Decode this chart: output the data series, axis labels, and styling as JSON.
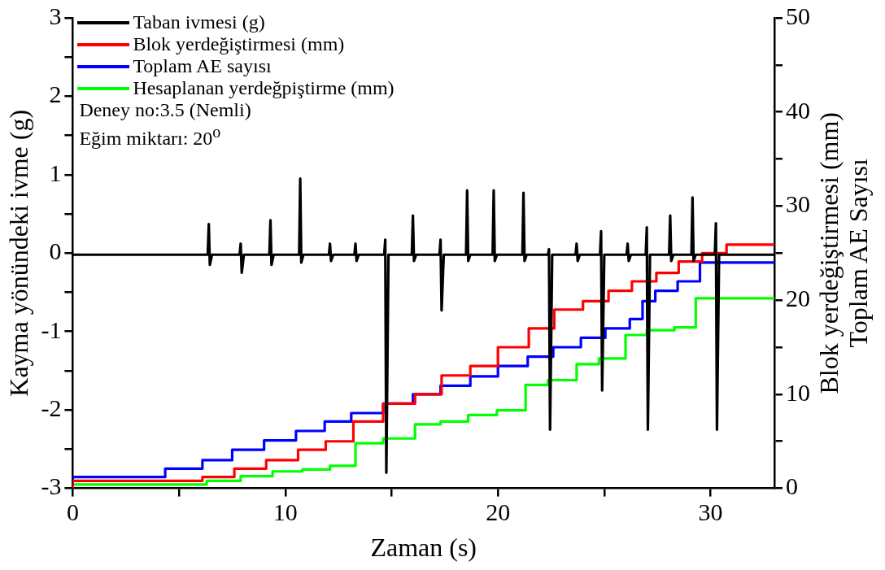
{
  "chart_data": {
    "type": "line",
    "xlabel": "Zaman (s)",
    "ylabel": "Kayma yönündeki ivme (g)",
    "y2label": "Blok yerdeğiştirmesi (mm)\nToplam AE Sayısı",
    "xlim": [
      0,
      33
    ],
    "xticks": [
      0,
      {
        "value": 5,
        "label": null
      },
      10,
      {
        "value": 15,
        "label": null
      },
      20,
      {
        "value": 25,
        "label": null
      },
      30
    ],
    "ylim": [
      -3,
      3
    ],
    "yticks": [
      -3,
      {
        "value": -2.5,
        "label": null
      },
      -2,
      {
        "value": -1.5,
        "label": null
      },
      -1,
      {
        "value": -0.5,
        "label": null
      },
      0,
      {
        "value": 0.5,
        "label": null
      },
      1,
      {
        "value": 1.5,
        "label": null
      },
      2,
      {
        "value": 2.5,
        "label": null
      },
      3
    ],
    "y2lim": [
      0,
      50
    ],
    "y2ticks": [
      0,
      {
        "value": 5,
        "label": null
      },
      10,
      {
        "value": 15,
        "label": null
      },
      20,
      {
        "value": 25,
        "label": null
      },
      30,
      {
        "value": 35,
        "label": null
      },
      40,
      {
        "value": 45,
        "label": null
      },
      50
    ],
    "grid": false,
    "legend": "top left",
    "annotations": [
      "Deney no:3.5 (Nemli)",
      "Eğim miktarı: 20$^{o}$"
    ],
    "series": [
      {
        "name": "Taban ivmesi (g)",
        "type": "line",
        "color": "#000000",
        "x": [
          0,
          6.35,
          6.4,
          6.45,
          6.55,
          7.85,
          7.9,
          7.95,
          8.05,
          9.25,
          9.3,
          9.35,
          9.45,
          10.65,
          10.7,
          10.75,
          10.85,
          12.05,
          12.1,
          12.15,
          12.25,
          13.25,
          13.3,
          13.35,
          13.45,
          14.65,
          14.7,
          14.75,
          14.85,
          15.95,
          16.0,
          16.05,
          16.15,
          17.25,
          17.3,
          17.35,
          17.45,
          18.5,
          18.55,
          18.6,
          18.7,
          19.75,
          19.8,
          19.85,
          19.95,
          21.15,
          21.2,
          21.25,
          21.35,
          22.35,
          22.4,
          22.45,
          22.55,
          23.65,
          23.7,
          23.75,
          23.85,
          24.8,
          24.85,
          24.9,
          25.0,
          26.05,
          26.1,
          26.15,
          26.25,
          26.95,
          27.0,
          27.05,
          27.15,
          28.05,
          28.1,
          28.15,
          28.25,
          29.1,
          29.15,
          29.2,
          29.3,
          30.2,
          30.25,
          30.3,
          30.4,
          33
        ],
        "values": [
          -0.02,
          -0.02,
          0.37,
          -0.15,
          -0.02,
          -0.02,
          0.12,
          -0.25,
          -0.02,
          -0.02,
          0.42,
          -0.15,
          -0.02,
          -0.02,
          0.95,
          -0.12,
          -0.02,
          -0.02,
          0.12,
          -0.1,
          -0.02,
          -0.02,
          0.12,
          -0.1,
          -0.02,
          -0.02,
          0.17,
          -2.8,
          -0.02,
          -0.02,
          0.48,
          -0.1,
          -0.02,
          -0.02,
          0.17,
          -0.73,
          -0.02,
          -0.02,
          0.8,
          -0.1,
          -0.02,
          -0.02,
          0.8,
          -0.1,
          -0.02,
          -0.02,
          0.77,
          -0.1,
          -0.02,
          -0.02,
          0.05,
          -2.25,
          -0.02,
          -0.02,
          0.12,
          -0.1,
          -0.02,
          -0.02,
          0.28,
          -1.75,
          -0.02,
          -0.02,
          0.12,
          -0.1,
          -0.02,
          -0.02,
          0.33,
          -2.25,
          -0.02,
          -0.02,
          0.48,
          -0.1,
          -0.02,
          -0.02,
          0.71,
          -0.1,
          -0.02,
          -0.02,
          0.38,
          -2.25,
          -0.02,
          -0.02
        ]
      },
      {
        "name": "Blok yerdeğiştirmesi (mm)",
        "type": "step",
        "axis": "y2",
        "color": "#ff0000",
        "x": [
          0,
          6.1,
          7.6,
          9.1,
          10.6,
          11.9,
          13.2,
          14.6,
          16.1,
          17.35,
          18.7,
          20.0,
          21.45,
          22.65,
          24.0,
          25.2,
          26.3,
          27.45,
          28.5,
          29.6,
          30.75,
          31.0,
          33
        ],
        "values": [
          0,
          0.8,
          1.2,
          2.1,
          3.0,
          4.1,
          5.0,
          7.1,
          9.0,
          10.0,
          12.0,
          13.0,
          15.0,
          17.0,
          19.0,
          19.9,
          21.0,
          22.0,
          22.9,
          24.1,
          25.0,
          25.9,
          25.9
        ]
      },
      {
        "name": "Toplam AE sayısı",
        "type": "step",
        "axis": "y2",
        "color": "#0000ff",
        "x": [
          0,
          4.35,
          6.1,
          7.5,
          9.0,
          10.5,
          11.85,
          13.1,
          14.6,
          16.0,
          17.3,
          18.7,
          20.0,
          21.4,
          22.6,
          23.9,
          25.05,
          26.2,
          26.8,
          27.4,
          28.45,
          29.5,
          30.7,
          33
        ],
        "values": [
          0,
          1.2,
          2.1,
          3.0,
          4.1,
          5.1,
          6.1,
          7.1,
          8.0,
          9.0,
          10.0,
          10.9,
          11.9,
          13.0,
          14.0,
          15.0,
          16.0,
          17.0,
          18.0,
          19.9,
          21.0,
          22.0,
          24.0,
          24.0
        ]
      },
      {
        "name": "Hesaplanan yerdeğpiştirme (mm)",
        "type": "step",
        "axis": "y2",
        "color": "#00ff00",
        "x": [
          0,
          6.3,
          7.9,
          9.4,
          10.8,
          12.1,
          13.3,
          14.6,
          16.1,
          17.3,
          18.6,
          19.95,
          21.3,
          22.35,
          23.7,
          24.75,
          26.0,
          27.0,
          28.3,
          29.3,
          30.2,
          33
        ],
        "values": [
          0,
          0.4,
          0.8,
          1.3,
          1.8,
          2.0,
          2.4,
          4.8,
          5.3,
          6.8,
          7.1,
          7.8,
          8.3,
          11.0,
          11.5,
          13.2,
          13.8,
          16.3,
          16.8,
          17.1,
          20.2,
          20.2
        ]
      }
    ]
  }
}
